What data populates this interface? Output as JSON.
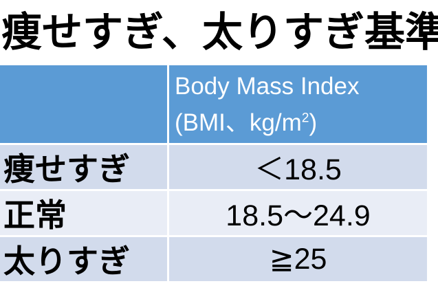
{
  "title": "痩せすぎ、太りすぎ基準",
  "colors": {
    "header_bg": "#5b9bd5",
    "header_text": "#ffffff",
    "band_dark": "#d2dbec",
    "band_light": "#e9edf6",
    "body_text": "#000000",
    "cell_divider": "#ffffff",
    "page_bg": "#ffffff"
  },
  "table": {
    "header": {
      "col1": "",
      "line1": "Body Mass Index",
      "line2_pre": "(BMI、kg/m",
      "line2_sup": "2",
      "line2_post": ")"
    },
    "rows": [
      {
        "label": "痩せすぎ",
        "value": "＜18.5"
      },
      {
        "label": "正常",
        "value": "18.5～24.9"
      },
      {
        "label": "太りすぎ",
        "value": "≧25"
      }
    ]
  },
  "chart_data": {
    "type": "table",
    "title": "痩せすぎ、太りすぎ基準",
    "columns": [
      "",
      "Body Mass Index (BMI、kg/m²)"
    ],
    "rows": [
      [
        "痩せすぎ",
        "＜18.5"
      ],
      [
        "正常",
        "18.5～24.9"
      ],
      [
        "太りすぎ",
        "≧25"
      ]
    ]
  }
}
